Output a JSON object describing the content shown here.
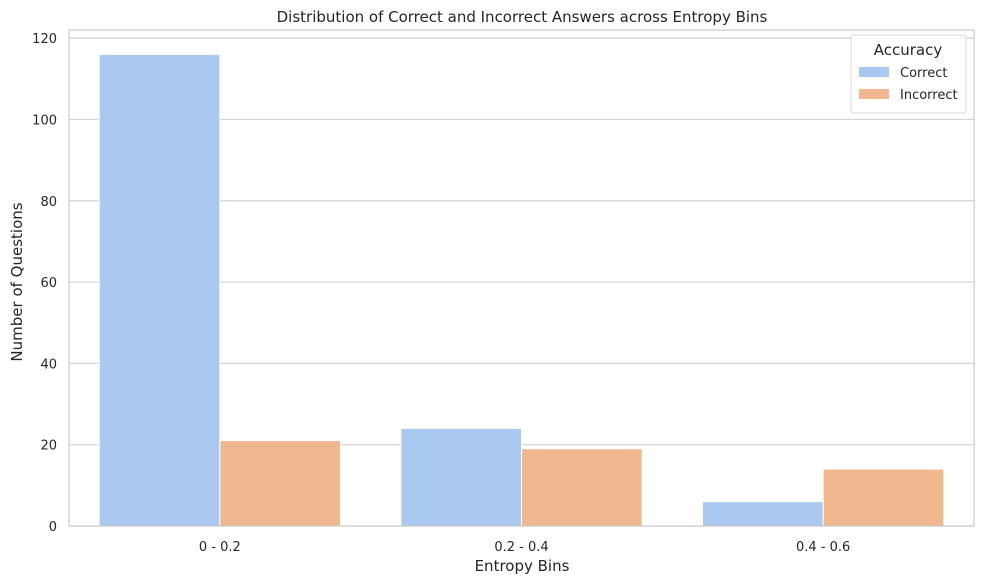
{
  "chart_data": {
    "type": "bar",
    "title": "Distribution of Correct and Incorrect Answers across Entropy Bins",
    "xlabel": "Entropy Bins",
    "ylabel": "Number of Questions",
    "categories": [
      "0 - 0.2",
      "0.2 - 0.4",
      "0.4 - 0.6"
    ],
    "series": [
      {
        "name": "Correct",
        "values": [
          116,
          24,
          6
        ],
        "color": "#a9c9f0"
      },
      {
        "name": "Incorrect",
        "values": [
          21,
          19,
          14
        ],
        "color": "#f1b890"
      }
    ],
    "ylim": [
      0,
      122
    ],
    "yticks": [
      0,
      20,
      40,
      60,
      80,
      100,
      120
    ],
    "grid": "horizontal",
    "legend": {
      "title": "Accuracy",
      "placement": "top-right"
    }
  }
}
